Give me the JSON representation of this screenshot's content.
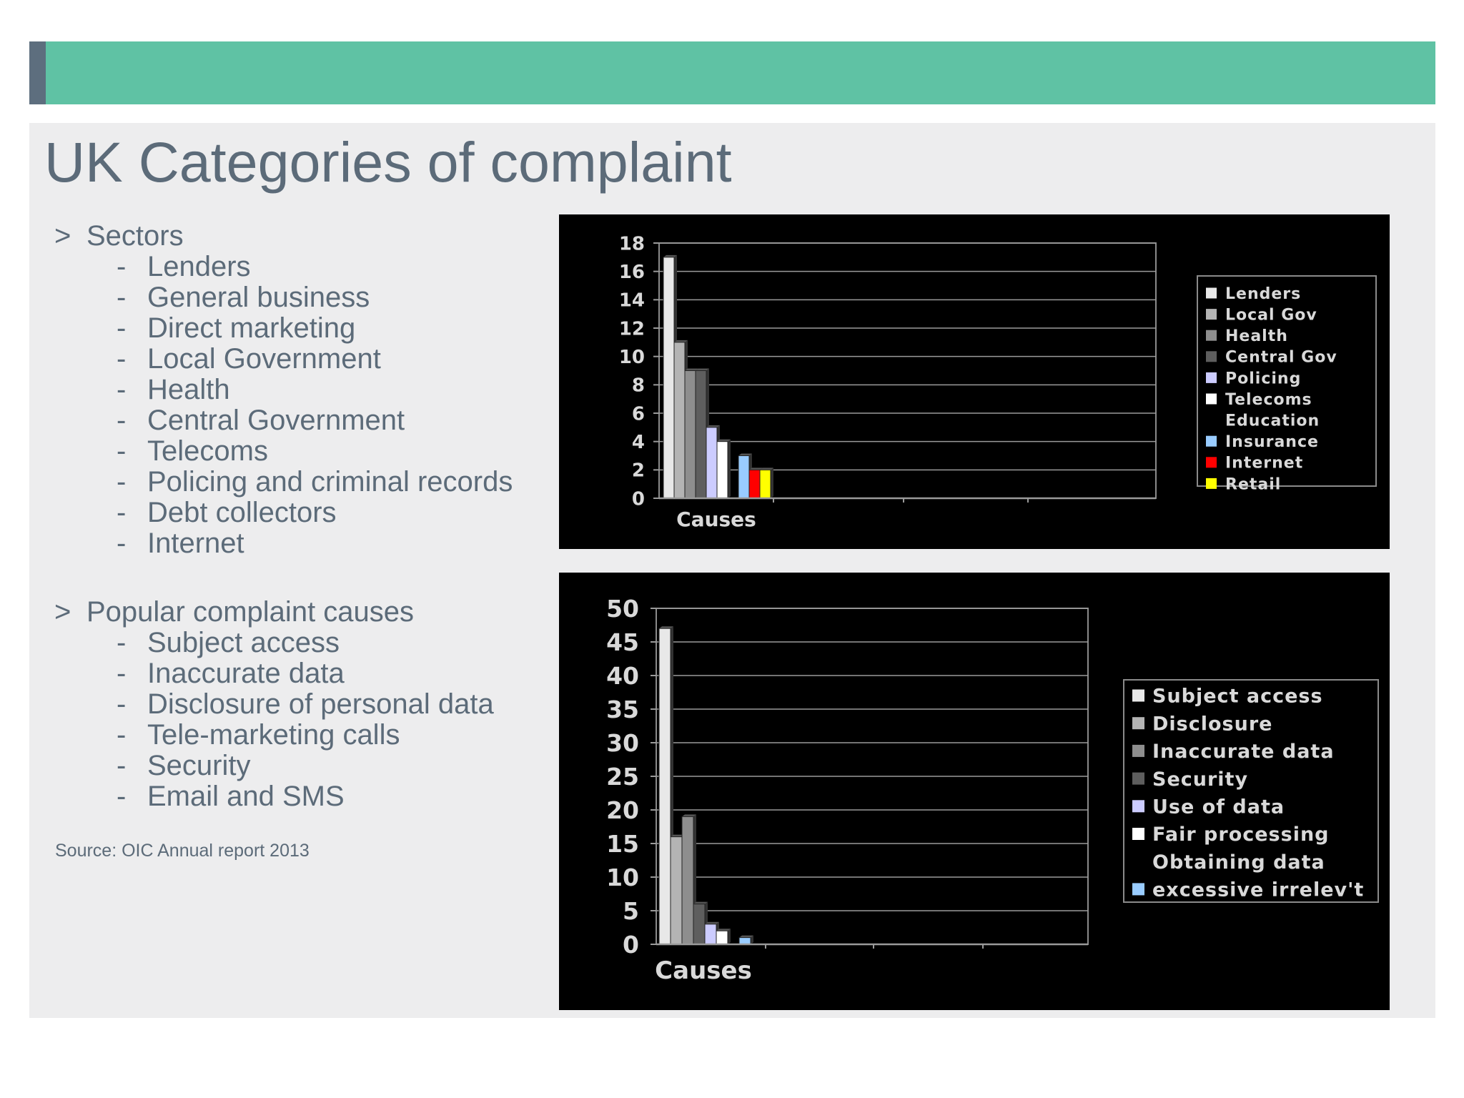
{
  "slide": {
    "title": "UK Categories of complaint",
    "source": "Source: OIC Annual report 2013"
  },
  "colors": {
    "header": "#5fc2a4",
    "header_accent": "#5d6e7e",
    "panel": "#ededee",
    "text": "#5c6b79",
    "chart_background": "#000000"
  },
  "sections": [
    {
      "marker": ">",
      "heading": "Sectors",
      "items": [
        "Lenders",
        "General business",
        "Direct marketing",
        "Local Government",
        "Health",
        "Central Government",
        "Telecoms",
        "Policing and criminal records",
        "Debt collectors",
        "Internet"
      ]
    },
    {
      "marker": ">",
      "heading": "Popular complaint causes",
      "items": [
        "Subject access",
        "Inaccurate data",
        "Disclosure of personal data",
        "Tele-marketing calls",
        "Security",
        "Email and SMS"
      ]
    }
  ],
  "chart_data": [
    {
      "type": "bar",
      "xlabel": "Causes",
      "ylim": [
        0,
        18
      ],
      "yticks": [
        0,
        2,
        4,
        6,
        8,
        10,
        12,
        14,
        16,
        18
      ],
      "grid": true,
      "legend_position": "right",
      "series": [
        {
          "name": "Lenders",
          "value": 17,
          "color": "#e8e8e8"
        },
        {
          "name": "Local Gov",
          "value": 11,
          "color": "#b4b4b4"
        },
        {
          "name": "Health",
          "value": 9,
          "color": "#8e8e8e"
        },
        {
          "name": "Central Gov",
          "value": 9,
          "color": "#5e5e5e"
        },
        {
          "name": "Policing",
          "value": 5,
          "color": "#ccccff"
        },
        {
          "name": "Telecoms",
          "value": 4,
          "color": "#ffffff"
        },
        {
          "name": "Education",
          "value": 0,
          "color": "#000000"
        },
        {
          "name": "Insurance",
          "value": 3,
          "color": "#99ccff"
        },
        {
          "name": "Internet",
          "value": 2,
          "color": "#ff0000"
        },
        {
          "name": "Retail",
          "value": 2,
          "color": "#ffff00"
        }
      ]
    },
    {
      "type": "bar",
      "xlabel": "Causes",
      "ylim": [
        0,
        50
      ],
      "yticks": [
        0,
        5,
        10,
        15,
        20,
        25,
        30,
        35,
        40,
        45,
        50
      ],
      "grid": true,
      "legend_position": "right",
      "series": [
        {
          "name": "Subject access",
          "value": 47,
          "color": "#e8e8e8"
        },
        {
          "name": "Disclosure",
          "value": 16,
          "color": "#b4b4b4"
        },
        {
          "name": "Inaccurate data",
          "value": 19,
          "color": "#8e8e8e"
        },
        {
          "name": "Security",
          "value": 6,
          "color": "#5e5e5e"
        },
        {
          "name": "Use of data",
          "value": 3,
          "color": "#ccccff"
        },
        {
          "name": "Fair processing",
          "value": 2,
          "color": "#ffffff"
        },
        {
          "name": "Obtaining data",
          "value": 0,
          "color": "#000000"
        },
        {
          "name": "excessive irrelev't",
          "value": 1,
          "color": "#99ccff"
        }
      ]
    }
  ]
}
